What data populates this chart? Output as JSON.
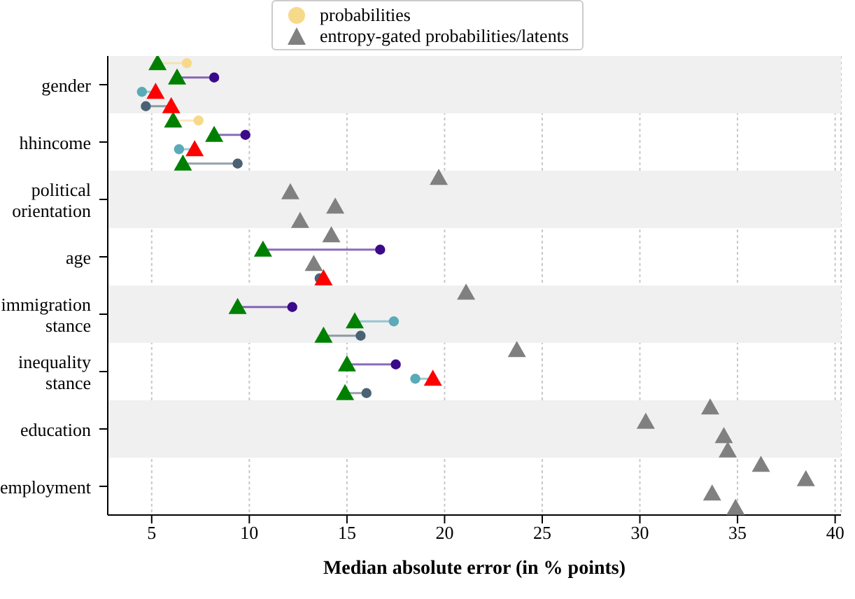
{
  "chart_data": {
    "type": "scatter",
    "orientation": "horizontal",
    "xlabel": "Median absolute error (in % points)",
    "categories": [
      "gender",
      "hhincome",
      "political orientation",
      "age",
      "immigration stance",
      "inequality stance",
      "education",
      "employment"
    ],
    "xlim": [
      2.75,
      40.3
    ],
    "xticks": [
      5,
      10,
      15,
      20,
      25,
      30,
      35,
      40
    ],
    "grid": "x",
    "legend": "top",
    "bands": [
      {
        "axis": "y",
        "from": "gender",
        "to": "gender",
        "color": "#f0f0f0"
      },
      {
        "axis": "y",
        "from": "political orientation",
        "to": "political orientation",
        "color": "#f0f0f0"
      },
      {
        "axis": "y",
        "from": "immigration stance",
        "to": "immigration stance",
        "color": "#f0f0f0"
      },
      {
        "axis": "y",
        "from": "education",
        "to": "education",
        "color": "#f0f0f0"
      }
    ],
    "series": [
      {
        "name": "probabilities",
        "marker": "circle",
        "color": "#f7d98a",
        "values": [
          6.8,
          7.4,
          null,
          null,
          null,
          null,
          null,
          null
        ]
      },
      {
        "marker": "circle",
        "color": "#3b0a8a",
        "values": [
          8.2,
          9.8,
          null,
          16.7,
          12.2,
          17.5,
          null,
          null
        ]
      },
      {
        "marker": "circle",
        "color": "#5aaab8",
        "values": [
          4.5,
          6.4,
          null,
          null,
          17.4,
          18.5,
          null,
          null
        ]
      },
      {
        "marker": "circle",
        "color": "#4a6274",
        "values": [
          4.7,
          9.4,
          null,
          13.6,
          15.7,
          16.0,
          null,
          null
        ]
      },
      {
        "name": "entropy-gated probabilities/latents",
        "marker": "triangle",
        "color": "#808080",
        "values": [
          5.3,
          6.1,
          19.7,
          14.2,
          21.1,
          23.7,
          33.6,
          36.2
        ],
        "colors": [
          "#008000",
          "#008000",
          "#808080",
          "#808080",
          "#808080",
          "#808080",
          "#808080",
          "#808080"
        ]
      },
      {
        "marker": "triangle",
        "color": "#808080",
        "values": [
          6.3,
          8.2,
          12.1,
          10.7,
          9.4,
          15.0,
          30.3,
          38.5
        ],
        "colors": [
          "#008000",
          "#008000",
          "#808080",
          "#008000",
          "#008000",
          "#008000",
          "#808080",
          "#808080"
        ]
      },
      {
        "marker": "triangle",
        "color": "#808080",
        "values": [
          5.2,
          7.2,
          14.4,
          13.3,
          15.4,
          19.4,
          34.3,
          33.7
        ],
        "colors": [
          "#ff0000",
          "#ff0000",
          "#808080",
          "#808080",
          "#008000",
          "#ff0000",
          "#808080",
          "#808080"
        ]
      },
      {
        "marker": "triangle",
        "color": "#808080",
        "values": [
          6.0,
          6.6,
          12.6,
          13.8,
          13.8,
          14.9,
          34.5,
          34.9
        ],
        "colors": [
          "#ff0000",
          "#008000",
          "#808080",
          "#ff0000",
          "#008000",
          "#008000",
          "#808080",
          "#808080"
        ]
      }
    ]
  }
}
